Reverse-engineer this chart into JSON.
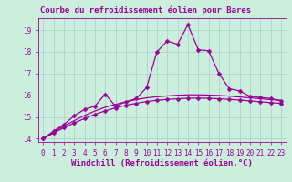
{
  "title": "Courbe du refroidissement éolien pour Bares",
  "xlabel": "Windchill (Refroidissement éolien,°C)",
  "bg_color": "#cceedd",
  "grid_color": "#aacccc",
  "line_color": "#990099",
  "xlim": [
    -0.5,
    23.5
  ],
  "ylim": [
    13.85,
    19.55
  ],
  "yticks": [
    14,
    15,
    16,
    17,
    18,
    19
  ],
  "xticks": [
    0,
    1,
    2,
    3,
    4,
    5,
    6,
    7,
    8,
    9,
    10,
    11,
    12,
    13,
    14,
    15,
    16,
    17,
    18,
    19,
    20,
    21,
    22,
    23
  ],
  "line_upper_x": [
    0,
    1,
    2,
    3,
    4,
    5,
    6,
    7,
    8,
    9,
    10,
    11,
    12,
    13,
    14,
    15,
    16,
    17,
    18,
    19,
    20,
    21,
    22,
    23
  ],
  "line_upper_y": [
    14.0,
    14.35,
    14.65,
    15.05,
    15.35,
    15.5,
    16.05,
    15.5,
    15.7,
    15.85,
    16.35,
    18.0,
    18.5,
    18.35,
    19.25,
    18.1,
    18.05,
    17.0,
    16.3,
    16.2,
    15.95,
    15.9,
    15.85,
    15.75
  ],
  "line_mid_x": [
    0,
    1,
    2,
    3,
    4,
    5,
    6,
    7,
    8,
    9,
    10,
    11,
    12,
    13,
    14,
    15,
    16,
    17,
    18,
    19,
    20,
    21,
    22,
    23
  ],
  "line_mid_y": [
    14.0,
    14.3,
    14.58,
    14.83,
    15.07,
    15.27,
    15.45,
    15.58,
    15.7,
    15.8,
    15.88,
    15.93,
    15.97,
    16.0,
    16.02,
    16.02,
    16.01,
    15.99,
    15.96,
    15.92,
    15.88,
    15.84,
    15.8,
    15.76
  ],
  "line_low_x": [
    0,
    1,
    2,
    3,
    4,
    5,
    6,
    7,
    8,
    9,
    10,
    11,
    12,
    13,
    14,
    15,
    16,
    17,
    18,
    19,
    20,
    21,
    22,
    23
  ],
  "line_low_y": [
    14.0,
    14.26,
    14.5,
    14.72,
    14.93,
    15.12,
    15.28,
    15.42,
    15.54,
    15.63,
    15.71,
    15.77,
    15.81,
    15.84,
    15.86,
    15.87,
    15.86,
    15.84,
    15.81,
    15.78,
    15.74,
    15.7,
    15.66,
    15.63
  ],
  "tick_fontsize": 5.5,
  "xlabel_fontsize": 6.5,
  "title_fontsize": 6.5
}
